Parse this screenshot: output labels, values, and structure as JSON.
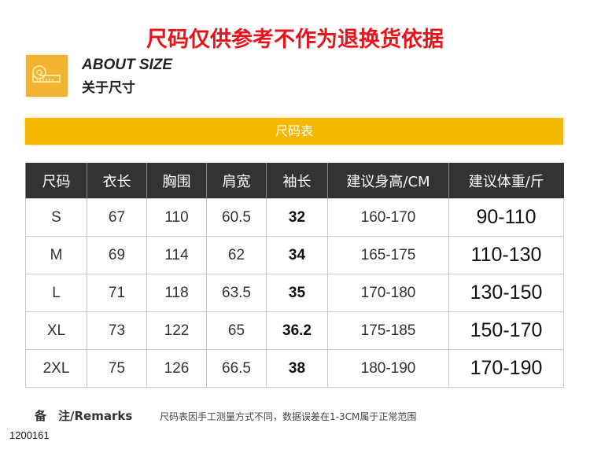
{
  "title": "尺码仅供参考不作为退换货依据",
  "about": {
    "en": "ABOUT SIZE",
    "cn": "关于尺寸",
    "icon": "tape-measure-icon"
  },
  "bar_label": "尺码表",
  "table": {
    "headers": [
      "尺码",
      "衣长",
      "胸围",
      "肩宽",
      "袖长",
      "建议身高/CM",
      "建议体重/斤"
    ],
    "rows": [
      [
        "S",
        "67",
        "110",
        "60.5",
        "32",
        "160-170",
        "90-110"
      ],
      [
        "M",
        "69",
        "114",
        "62",
        "34",
        "165-175",
        "110-130"
      ],
      [
        "L",
        "71",
        "118",
        "63.5",
        "35",
        "170-180",
        "130-150"
      ],
      [
        "XL",
        "73",
        "122",
        "65",
        "36.2",
        "175-185",
        "150-170"
      ],
      [
        "2XL",
        "75",
        "126",
        "66.5",
        "38",
        "180-190",
        "170-190"
      ]
    ]
  },
  "remarks_label": "备　注/Remarks",
  "remarks_text": "尺码表因手工测量方式不同，数据误差在1-3CM属于正常范围",
  "code": "1200161",
  "colors": {
    "title": "#e8141b",
    "accent": "#f5b800",
    "header": "#333333"
  }
}
